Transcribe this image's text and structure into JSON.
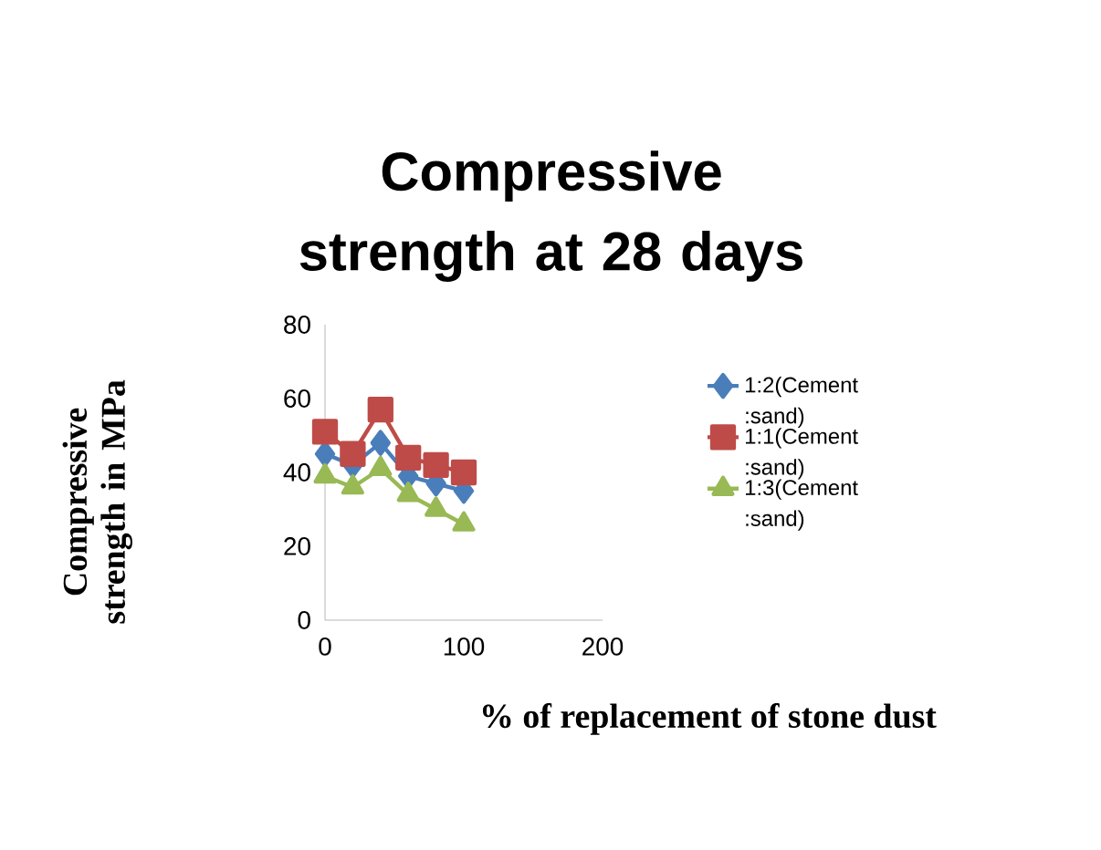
{
  "chart_data": {
    "type": "line",
    "title": "Compressive strength at 28 days",
    "xlabel": "% of replacement of stone dust",
    "ylabel": "Compressive strength in MPa",
    "x": [
      0,
      20,
      40,
      60,
      80,
      100
    ],
    "series": [
      {
        "name": "1:2(Cement :sand)",
        "color": "#4a7ebb",
        "marker": "diamond",
        "values": [
          45,
          42,
          48,
          39,
          37,
          35
        ]
      },
      {
        "name": "1:1(Cement :sand)",
        "color": "#be4b48",
        "marker": "square",
        "values": [
          51,
          45,
          57,
          44,
          42,
          40
        ]
      },
      {
        "name": "1:3(Cement :sand)",
        "color": "#98b954",
        "marker": "triangle",
        "values": [
          39,
          36,
          41,
          34,
          30,
          26
        ]
      }
    ],
    "xlim": [
      0,
      200
    ],
    "xticks": [
      0,
      100,
      200
    ],
    "ylim": [
      0,
      80
    ],
    "yticks": [
      0,
      20,
      40,
      60,
      80
    ],
    "grid": false,
    "legend": "right",
    "line_style": "solid"
  }
}
